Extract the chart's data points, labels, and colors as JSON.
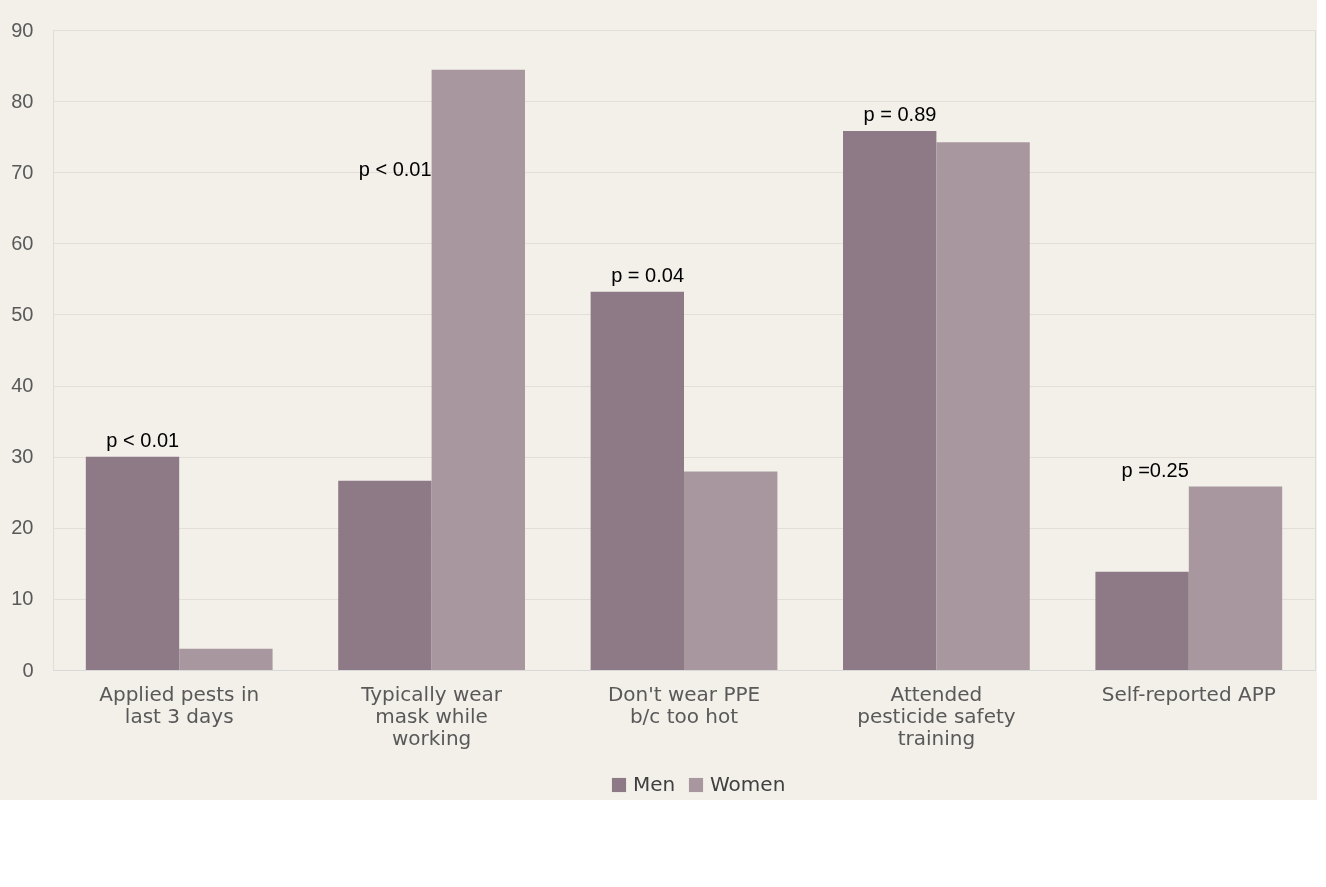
{
  "chart_data": {
    "type": "bar",
    "categories": [
      "Applied pests in last 3 days",
      "Typically wear mask while working",
      "Don't wear PPE b/c too hot",
      "Attended pesticide safety training",
      "Self-reported APP"
    ],
    "series": [
      {
        "name": "Men",
        "color": "#8e7a86",
        "values": [
          30,
          26.6,
          53.2,
          75.8,
          13.8
        ]
      },
      {
        "name": "Women",
        "color": "#a8979f",
        "values": [
          3,
          84.4,
          27.9,
          74.2,
          25.8
        ]
      }
    ],
    "ylim": [
      0,
      90
    ],
    "yticks": [
      0,
      10,
      20,
      30,
      40,
      50,
      60,
      70,
      80,
      90
    ],
    "grid": "y",
    "legend": "bottom",
    "annotations": [
      {
        "text": "p < 0.01",
        "x": "Applied pests in last 3 days",
        "y": 30
      },
      {
        "text": "p < 0.01",
        "x": "Typically wear mask while working",
        "y": 68
      },
      {
        "text": "p = 0.04",
        "x": "Don't wear PPE b/c too hot",
        "y": 53.2
      },
      {
        "text": "p = 0.89",
        "x": "Attended pesticide safety training",
        "y": 75.8
      },
      {
        "text": "p =0.25",
        "x": "Self-reported APP",
        "y": 25.8
      }
    ]
  }
}
